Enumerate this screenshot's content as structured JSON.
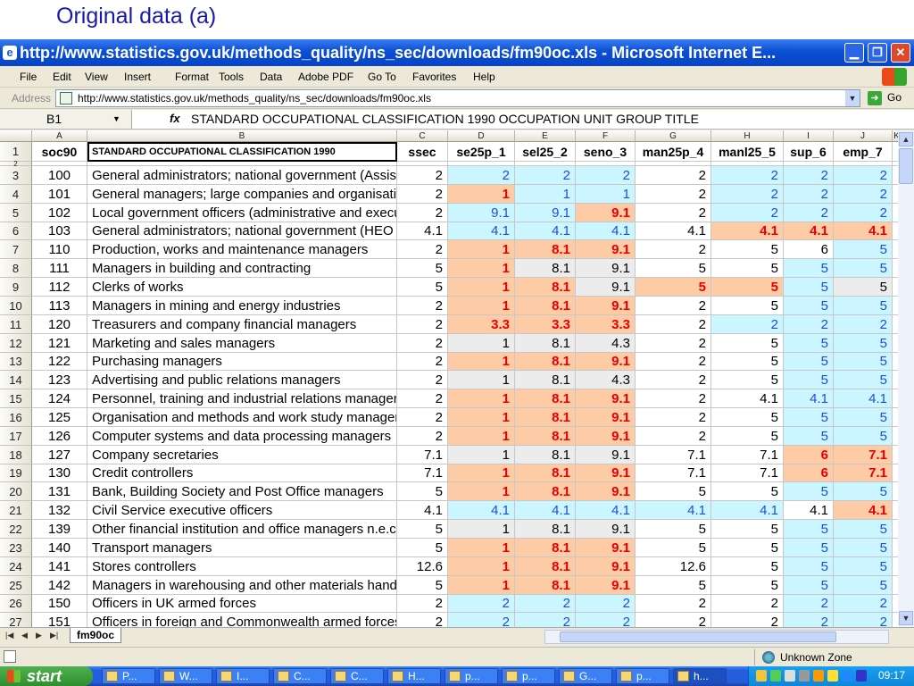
{
  "slide": {
    "title": "Original data (a)"
  },
  "window": {
    "title": "http://www.statistics.gov.uk/methods_quality/ns_sec/downloads/fm90oc.xls - Microsoft Internet E..."
  },
  "menu": [
    "File",
    "Edit",
    "View",
    "Insert",
    "Format",
    "Tools",
    "Data",
    "Adobe PDF",
    "Go To",
    "Favorites",
    "Help"
  ],
  "address": {
    "label": "Address",
    "url": "http://www.statistics.gov.uk/methods_quality/ns_sec/downloads/fm90oc.xls",
    "go": "Go"
  },
  "formula": {
    "namebox": "B1",
    "fx": "fx",
    "text": "STANDARD OCCUPATIONAL CLASSIFICATION 1990 OCCUPATION UNIT GROUP TITLE"
  },
  "columns": [
    "A",
    "B",
    "C",
    "D",
    "E",
    "F",
    "G",
    "H",
    "I",
    "J",
    "K"
  ],
  "header_row": {
    "num": "1",
    "cells": [
      "soc90",
      "STANDARD OCCUPATIONAL CLASSIFICATION 1990",
      "ssec",
      "se25p_1",
      "sel25_2",
      "seno_3",
      "man25p_4",
      "manl25_5",
      "sup_6",
      "emp_7"
    ]
  },
  "collapsed_row_num": "2",
  "rows": [
    {
      "num": "3",
      "code": "100",
      "title": "General administrators; national government (Assistant Secretary",
      "ssec": "2",
      "v": [
        "2",
        "2",
        "2",
        "2",
        "2",
        "2",
        "2"
      ],
      "s": [
        "blue",
        "blue",
        "blue",
        "white",
        "blue",
        "blue",
        "blue"
      ]
    },
    {
      "num": "4",
      "code": "101",
      "title": "General managers; large companies and organisations",
      "ssec": "2",
      "v": [
        "1",
        "1",
        "1",
        "2",
        "2",
        "2",
        "2"
      ],
      "s": [
        "orng",
        "blue",
        "blue",
        "white",
        "blue",
        "blue",
        "blue"
      ]
    },
    {
      "num": "5",
      "code": "102",
      "title": "Local government officers (administrative and executive functions)",
      "ssec": "2",
      "v": [
        "9.1",
        "9.1",
        "9.1",
        "2",
        "2",
        "2",
        "2"
      ],
      "s": [
        "blue",
        "blue",
        "orng",
        "white",
        "blue",
        "blue",
        "blue"
      ]
    },
    {
      "num": "6",
      "code": "103",
      "title": "General administrators; national government (HEO to Senior Principal",
      "ssec": "4.1",
      "v": [
        "4.1",
        "4.1",
        "4.1",
        "4.1",
        "4.1",
        "4.1",
        "4.1"
      ],
      "s": [
        "blue",
        "blue",
        "blue",
        "white",
        "orng",
        "orng",
        "orng"
      ]
    },
    {
      "num": "7",
      "code": "110",
      "title": "Production, works and maintenance managers",
      "ssec": "2",
      "v": [
        "1",
        "8.1",
        "9.1",
        "2",
        "5",
        "6",
        "5"
      ],
      "s": [
        "orng",
        "orng",
        "orng",
        "white",
        "white",
        "white",
        "blue"
      ]
    },
    {
      "num": "8",
      "code": "111",
      "title": "Managers in building and contracting",
      "ssec": "5",
      "v": [
        "1",
        "8.1",
        "9.1",
        "5",
        "5",
        "5",
        "5"
      ],
      "s": [
        "orng",
        "gray",
        "gray",
        "white",
        "white",
        "blue",
        "blue"
      ]
    },
    {
      "num": "9",
      "code": "112",
      "title": "Clerks of works",
      "ssec": "5",
      "v": [
        "1",
        "8.1",
        "9.1",
        "5",
        "5",
        "5",
        "5"
      ],
      "s": [
        "orng",
        "orng",
        "gray",
        "orng",
        "orng",
        "blue",
        "gray"
      ]
    },
    {
      "num": "10",
      "code": "113",
      "title": "Managers in mining and energy industries",
      "ssec": "2",
      "v": [
        "1",
        "8.1",
        "9.1",
        "2",
        "5",
        "5",
        "5"
      ],
      "s": [
        "orng",
        "orng",
        "orng",
        "white",
        "white",
        "blue",
        "blue"
      ]
    },
    {
      "num": "11",
      "code": "120",
      "title": "Treasurers and company financial managers",
      "ssec": "2",
      "v": [
        "3.3",
        "3.3",
        "3.3",
        "2",
        "2",
        "2",
        "2"
      ],
      "s": [
        "orng",
        "orng",
        "orng",
        "white",
        "blue",
        "blue",
        "blue"
      ]
    },
    {
      "num": "12",
      "code": "121",
      "title": "Marketing and sales managers",
      "ssec": "2",
      "v": [
        "1",
        "8.1",
        "4.3",
        "2",
        "5",
        "5",
        "5"
      ],
      "s": [
        "gray",
        "gray",
        "gray",
        "white",
        "white",
        "blue",
        "blue"
      ]
    },
    {
      "num": "13",
      "code": "122",
      "title": "Purchasing managers",
      "ssec": "2",
      "v": [
        "1",
        "8.1",
        "9.1",
        "2",
        "5",
        "5",
        "5"
      ],
      "s": [
        "orng",
        "orng",
        "orng",
        "white",
        "white",
        "blue",
        "blue"
      ]
    },
    {
      "num": "14",
      "code": "123",
      "title": "Advertising and public relations managers",
      "ssec": "2",
      "v": [
        "1",
        "8.1",
        "4.3",
        "2",
        "5",
        "5",
        "5"
      ],
      "s": [
        "gray",
        "gray",
        "gray",
        "white",
        "white",
        "blue",
        "blue"
      ]
    },
    {
      "num": "15",
      "code": "124",
      "title": "Personnel, training and industrial relations managers",
      "ssec": "2",
      "v": [
        "1",
        "8.1",
        "9.1",
        "2",
        "4.1",
        "4.1",
        "4.1"
      ],
      "s": [
        "orng",
        "orng",
        "orng",
        "white",
        "white",
        "blue",
        "blue"
      ]
    },
    {
      "num": "16",
      "code": "125",
      "title": "Organisation and methods and work study managers",
      "ssec": "2",
      "v": [
        "1",
        "8.1",
        "9.1",
        "2",
        "5",
        "5",
        "5"
      ],
      "s": [
        "orng",
        "orng",
        "orng",
        "white",
        "white",
        "blue",
        "blue"
      ]
    },
    {
      "num": "17",
      "code": "126",
      "title": "Computer systems and data processing managers",
      "ssec": "2",
      "v": [
        "1",
        "8.1",
        "9.1",
        "2",
        "5",
        "5",
        "5"
      ],
      "s": [
        "orng",
        "orng",
        "orng",
        "white",
        "white",
        "blue",
        "blue"
      ]
    },
    {
      "num": "18",
      "code": "127",
      "title": "Company secretaries",
      "ssec": "7.1",
      "v": [
        "1",
        "8.1",
        "9.1",
        "7.1",
        "7.1",
        "6",
        "7.1"
      ],
      "s": [
        "gray",
        "gray",
        "gray",
        "white",
        "white",
        "orng",
        "orng"
      ]
    },
    {
      "num": "19",
      "code": "130",
      "title": "Credit controllers",
      "ssec": "7.1",
      "v": [
        "1",
        "8.1",
        "9.1",
        "7.1",
        "7.1",
        "6",
        "7.1"
      ],
      "s": [
        "orng",
        "orng",
        "orng",
        "white",
        "white",
        "orng",
        "orng"
      ]
    },
    {
      "num": "20",
      "code": "131",
      "title": "Bank, Building Society and Post Office managers",
      "ssec": "5",
      "v": [
        "1",
        "8.1",
        "9.1",
        "5",
        "5",
        "5",
        "5"
      ],
      "s": [
        "orng",
        "orng",
        "orng",
        "white",
        "white",
        "blue",
        "blue"
      ]
    },
    {
      "num": "21",
      "code": "132",
      "title": "Civil Service executive officers",
      "ssec": "4.1",
      "v": [
        "4.1",
        "4.1",
        "4.1",
        "4.1",
        "4.1",
        "4.1",
        "4.1"
      ],
      "s": [
        "blue",
        "blue",
        "blue",
        "blue",
        "blue",
        "white",
        "orng"
      ]
    },
    {
      "num": "22",
      "code": "139",
      "title": "Other financial institution and office managers n.e.c.",
      "ssec": "5",
      "v": [
        "1",
        "8.1",
        "9.1",
        "5",
        "5",
        "5",
        "5"
      ],
      "s": [
        "gray",
        "gray",
        "gray",
        "white",
        "white",
        "blue",
        "blue"
      ]
    },
    {
      "num": "23",
      "code": "140",
      "title": "Transport managers",
      "ssec": "5",
      "v": [
        "1",
        "8.1",
        "9.1",
        "5",
        "5",
        "5",
        "5"
      ],
      "s": [
        "orng",
        "orng",
        "orng",
        "white",
        "white",
        "blue",
        "blue"
      ]
    },
    {
      "num": "24",
      "code": "141",
      "title": "Stores controllers",
      "ssec": "12.6",
      "v": [
        "1",
        "8.1",
        "9.1",
        "12.6",
        "5",
        "5",
        "5"
      ],
      "s": [
        "orng",
        "orng",
        "orng",
        "white",
        "white",
        "blue",
        "blue"
      ]
    },
    {
      "num": "25",
      "code": "142",
      "title": "Managers in warehousing and other materials handling",
      "ssec": "5",
      "v": [
        "1",
        "8.1",
        "9.1",
        "5",
        "5",
        "5",
        "5"
      ],
      "s": [
        "orng",
        "orng",
        "orng",
        "white",
        "white",
        "blue",
        "blue"
      ]
    },
    {
      "num": "26",
      "code": "150",
      "title": "Officers in UK armed forces",
      "ssec": "2",
      "v": [
        "2",
        "2",
        "2",
        "2",
        "2",
        "2",
        "2"
      ],
      "s": [
        "blue",
        "blue",
        "blue",
        "white",
        "white",
        "blue",
        "blue"
      ]
    },
    {
      "num": "27",
      "code": "151",
      "title": "Officers in foreign and Commonwealth armed forces",
      "ssec": "2",
      "v": [
        "2",
        "2",
        "2",
        "2",
        "2",
        "2",
        "2"
      ],
      "s": [
        "blue",
        "blue",
        "blue",
        "white",
        "white",
        "blue",
        "blue"
      ]
    }
  ],
  "sheet_tab": "fm90oc",
  "status": {
    "zone": "Unknown Zone"
  },
  "taskbar": {
    "start": "start",
    "tasks": [
      "P...",
      "W...",
      "I...",
      "C...",
      "C...",
      "H...",
      "p...",
      "p...",
      "G...",
      "p...",
      "h..."
    ],
    "clock": "09:17"
  },
  "colors": {
    "highlight_blue": "#ccf6ff",
    "highlight_orange": "#fdcba5",
    "alert_red": "#e80000",
    "value_blue": "#1a4fd8"
  }
}
